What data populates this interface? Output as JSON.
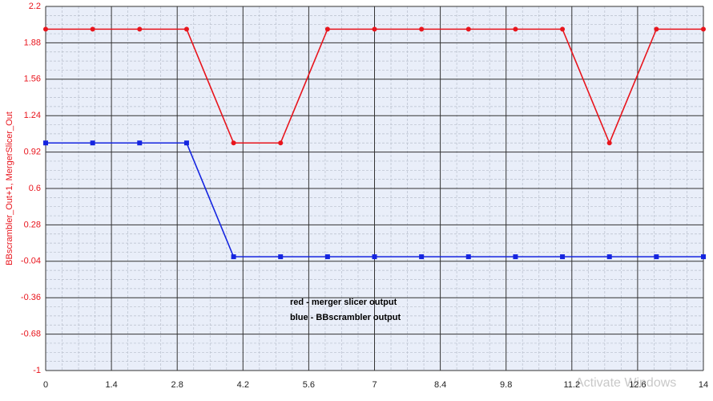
{
  "chart_data": {
    "type": "line",
    "y_label": "BBscrambler_Out+1, MergerSlicer_Out",
    "x": [
      0,
      1,
      2,
      3,
      4,
      5,
      6,
      7,
      8,
      9,
      10,
      11,
      12,
      13,
      14
    ],
    "series": [
      {
        "name": "red - merger slicer output",
        "color": "#e8141c",
        "marker": "circle",
        "values": [
          2,
          2,
          2,
          2,
          1,
          1,
          2,
          2,
          2,
          2,
          2,
          2,
          1,
          2,
          2
        ]
      },
      {
        "name": "blue - BBscrambler output",
        "color": "#1424e0",
        "marker": "square",
        "values": [
          1,
          1,
          1,
          1,
          0,
          0,
          0,
          0,
          0,
          0,
          0,
          0,
          0,
          0,
          0
        ]
      }
    ],
    "xlim": [
      0,
      14
    ],
    "xticks": [
      0,
      1.4,
      2.8,
      4.2,
      5.6,
      7,
      8.4,
      9.8,
      11.2,
      12.6,
      14
    ],
    "ylim": [
      -1,
      2.2
    ],
    "yticks": [
      2.2,
      1.88,
      1.56,
      1.24,
      0.92,
      0.6,
      0.28,
      -0.04,
      -0.36,
      -0.68,
      -1
    ],
    "grid": true,
    "watermark": "Activate Windows"
  }
}
